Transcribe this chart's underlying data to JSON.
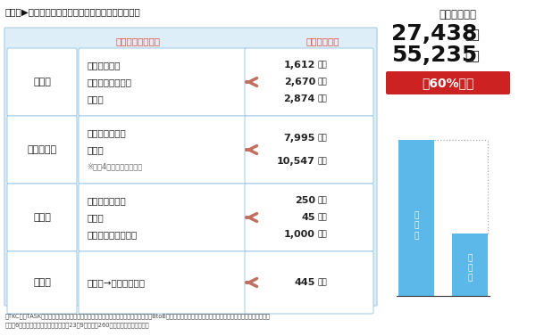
{
  "title_parts": [
    "図表２▶",
    "電子請求書サービス実証実験の定量的な効果"
  ],
  "section_header_left": "実証実験での工程",
  "section_header_right": "年間削減時間",
  "roles": [
    "起案者",
    "承認決裁者",
    "会計課",
    "その他"
  ],
  "tasks": [
    [
      "・請求書受領",
      "・支出命令書作成",
      "・回覧",
      ""
    ],
    [
      "・内容チェック",
      "・回覧",
      "※最大4名のコストで算出",
      ""
    ],
    [
      "・内容チェック",
      "・回覧",
      "・原本ファイリング",
      ""
    ],
    [
      "・施設→本庁への送付",
      "",
      "",
      ""
    ]
  ],
  "times": [
    [
      "1,612時間",
      "2,670時間",
      "2,874時間"
    ],
    [
      "7,995時間",
      "10,547時間",
      ""
    ],
    [
      "250時間",
      "45時間",
      "1,000時間"
    ],
    [
      "445時間",
      "",
      ""
    ]
  ],
  "annual_effect_label": "年間削減効果",
  "annual_hours_num": "27,438",
  "annual_hours_unit": "時間",
  "annual_cost_num": "55,235",
  "annual_cost_unit": "千円",
  "reduction_label": "約60%削減",
  "bar_before_label": "導\n入\n前",
  "bar_after_label": "導\n入\n後",
  "bar_before_value": 100,
  "bar_after_value": 40,
  "footnote1": "＊TKCの「TASKクラウド公会計システム」と、株式会社インフォマートが提供する「BtoBプラットフォーム請求書」電子化連携による実証実験の検証結果",
  "footnote2": "＊年間6万通の請求書、地方公共団体（23課9施設）、260名の職員数の条件で試算",
  "bg_color": "#deeef8",
  "header_color": "#e8453c",
  "box_edge_color": "#9ecae8",
  "arrow_color": "#c07060",
  "bar_color": "#5bb8e8",
  "reduction_bg": "#cc2222",
  "reduction_text": "#ffffff",
  "dot_color": "#aaaaaa",
  "title_color": "#111111",
  "text_color": "#222222",
  "small_note_color": "#666666"
}
